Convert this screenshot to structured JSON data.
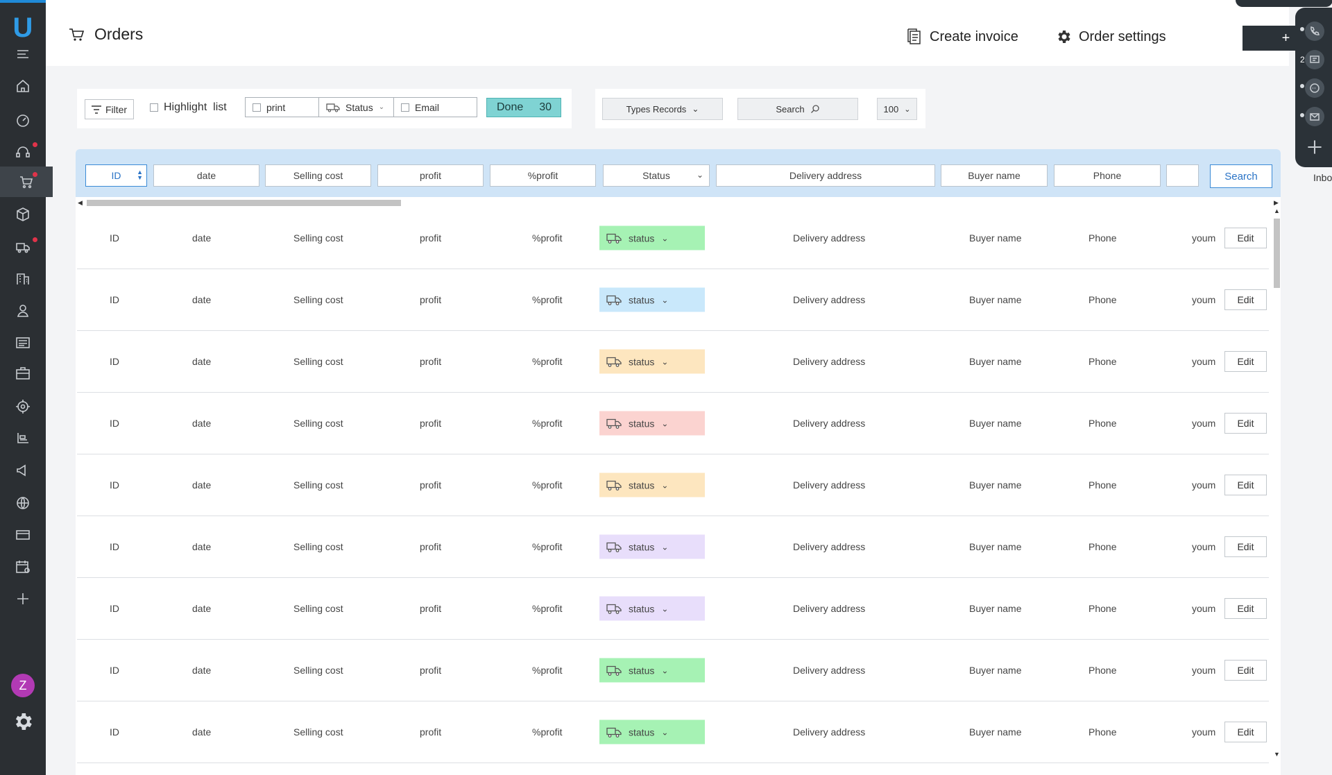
{
  "app": {
    "logo": "U",
    "accent": "#1f8ad8"
  },
  "header": {
    "title": "Orders",
    "create_invoice": "Create invoice",
    "order_settings": "Order settings",
    "plus": "+"
  },
  "toolbar": {
    "filter": "Filter",
    "highlight_list": "Highlight  list",
    "print": "print",
    "status": "Status",
    "email": "Email",
    "done_label": "Done",
    "done_count": "30"
  },
  "toolbar2": {
    "types_records": "Types Records",
    "search": "Search",
    "page_size": "100"
  },
  "filters": {
    "id": "ID",
    "date": "date",
    "selling_cost": "Selling cost",
    "profit": "profit",
    "pct_profit": "%profit",
    "status": "Status",
    "delivery_address": "Delivery address",
    "buyer_name": "Buyer name",
    "phone": "Phone",
    "blank": "",
    "search_button": "Search"
  },
  "rows": [
    {
      "id": "ID",
      "date": "date",
      "selling_cost": "Selling cost",
      "profit": "profit",
      "pct_profit": "%profit",
      "status": "status",
      "status_color": "#a6f2b4",
      "delivery_address": "Delivery address",
      "buyer_name": "Buyer name",
      "phone": "Phone",
      "extra": "youm",
      "edit": "Edit"
    },
    {
      "id": "ID",
      "date": "date",
      "selling_cost": "Selling cost",
      "profit": "profit",
      "pct_profit": "%profit",
      "status": "status",
      "status_color": "#c9e8fb",
      "delivery_address": "Delivery address",
      "buyer_name": "Buyer name",
      "phone": "Phone",
      "extra": "youm",
      "edit": "Edit"
    },
    {
      "id": "ID",
      "date": "date",
      "selling_cost": "Selling cost",
      "profit": "profit",
      "pct_profit": "%profit",
      "status": "status",
      "status_color": "#fde6bf",
      "delivery_address": "Delivery address",
      "buyer_name": "Buyer name",
      "phone": "Phone",
      "extra": "youm",
      "edit": "Edit"
    },
    {
      "id": "ID",
      "date": "date",
      "selling_cost": "Selling cost",
      "profit": "profit",
      "pct_profit": "%profit",
      "status": "status",
      "status_color": "#fbd3d0",
      "delivery_address": "Delivery address",
      "buyer_name": "Buyer name",
      "phone": "Phone",
      "extra": "youm",
      "edit": "Edit"
    },
    {
      "id": "ID",
      "date": "date",
      "selling_cost": "Selling cost",
      "profit": "profit",
      "pct_profit": "%profit",
      "status": "status",
      "status_color": "#fde6bf",
      "delivery_address": "Delivery address",
      "buyer_name": "Buyer name",
      "phone": "Phone",
      "extra": "youm",
      "edit": "Edit"
    },
    {
      "id": "ID",
      "date": "date",
      "selling_cost": "Selling cost",
      "profit": "profit",
      "pct_profit": "%profit",
      "status": "status",
      "status_color": "#e8defb",
      "delivery_address": "Delivery address",
      "buyer_name": "Buyer name",
      "phone": "Phone",
      "extra": "youm",
      "edit": "Edit"
    },
    {
      "id": "ID",
      "date": "date",
      "selling_cost": "Selling cost",
      "profit": "profit",
      "pct_profit": "%profit",
      "status": "status",
      "status_color": "#e8defb",
      "delivery_address": "Delivery address",
      "buyer_name": "Buyer name",
      "phone": "Phone",
      "extra": "youm",
      "edit": "Edit"
    },
    {
      "id": "ID",
      "date": "date",
      "selling_cost": "Selling cost",
      "profit": "profit",
      "pct_profit": "%profit",
      "status": "status",
      "status_color": "#a6f2b4",
      "delivery_address": "Delivery address",
      "buyer_name": "Buyer name",
      "phone": "Phone",
      "extra": "youm",
      "edit": "Edit"
    },
    {
      "id": "ID",
      "date": "date",
      "selling_cost": "Selling cost",
      "profit": "profit",
      "pct_profit": "%profit",
      "status": "status",
      "status_color": "#a6f2b4",
      "delivery_address": "Delivery address",
      "buyer_name": "Buyer name",
      "phone": "Phone",
      "extra": "youm",
      "edit": "Edit"
    }
  ],
  "sidebar": {
    "icons": [
      "menu-icon",
      "home-icon",
      "dashboard-icon",
      "support-icon",
      "cart-icon",
      "box-icon",
      "truck-icon",
      "building-icon",
      "user-icon",
      "list-icon",
      "briefcase-icon",
      "target-icon",
      "warehouse-icon",
      "megaphone-icon",
      "globe-icon",
      "card-icon",
      "calendar-icon",
      "plus-icon"
    ],
    "avatar": "Z"
  },
  "rightbar": {
    "badge": "2",
    "inbox_label": "Inbo"
  }
}
